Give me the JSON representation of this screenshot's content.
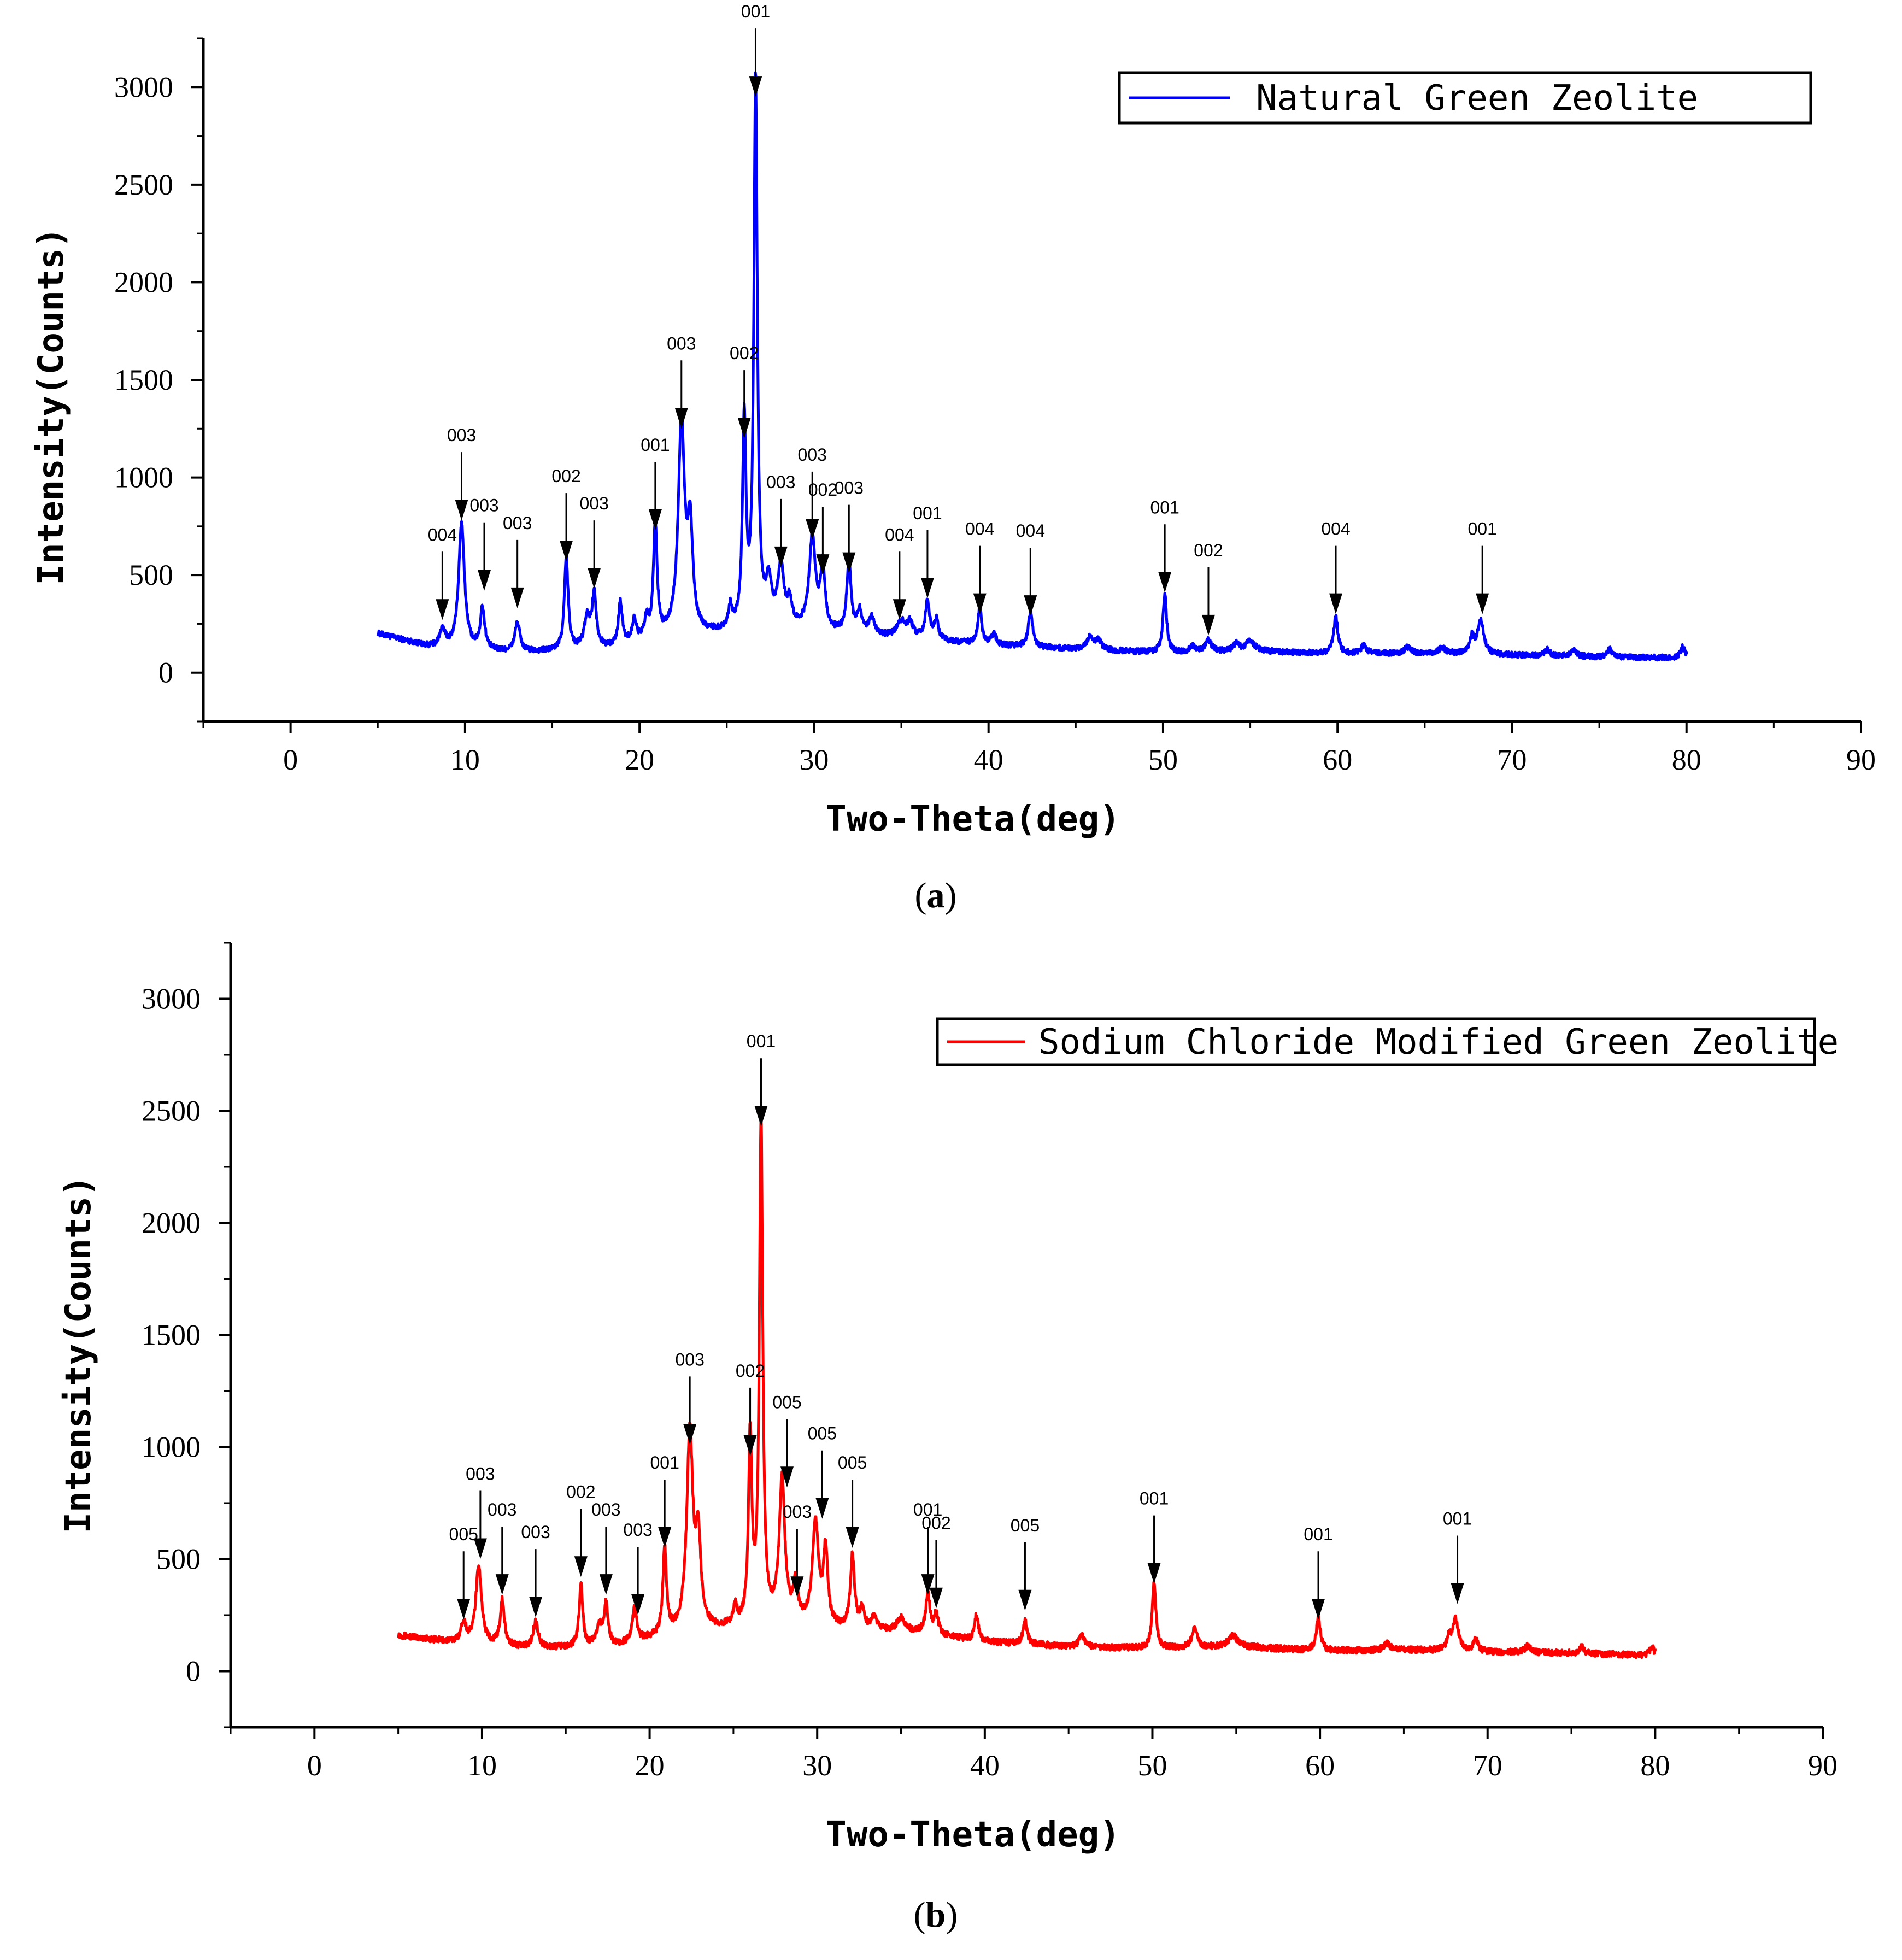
{
  "chart_data": [
    {
      "type": "line",
      "caption": "a",
      "xlabel": "Two-Theta(deg)",
      "ylabel": "Intensity(Counts)",
      "xlim": [
        -5,
        90
      ],
      "ylim": [
        -250,
        3250
      ],
      "xticks": [
        0,
        10,
        20,
        30,
        40,
        50,
        60,
        70,
        80,
        90
      ],
      "yticks": [
        0,
        500,
        1000,
        1500,
        2000,
        2500,
        3000
      ],
      "grid": false,
      "legend_position": "top-right",
      "series": [
        {
          "name": "Natural Green Zeolite",
          "color": "#0000ff",
          "x_range": [
            5,
            80
          ],
          "baseline": [
            [
              5,
              200
            ],
            [
              8,
              130
            ],
            [
              13,
              100
            ],
            [
              18,
              120
            ],
            [
              22,
              180
            ],
            [
              25,
              200
            ],
            [
              28,
              230
            ],
            [
              32,
              190
            ],
            [
              36,
              170
            ],
            [
              40,
              140
            ],
            [
              45,
              120
            ],
            [
              50,
              100
            ],
            [
              55,
              110
            ],
            [
              60,
              95
            ],
            [
              65,
              100
            ],
            [
              70,
              90
            ],
            [
              75,
              80
            ],
            [
              80,
              75
            ]
          ],
          "peaks": [
            [
              8.7,
              90,
              0.18
            ],
            [
              9.8,
              640,
              0.2
            ],
            [
              11.0,
              210,
              0.15
            ],
            [
              13.0,
              150,
              0.18
            ],
            [
              15.8,
              470,
              0.13
            ],
            [
              17.0,
              150,
              0.2
            ],
            [
              17.4,
              270,
              0.15
            ],
            [
              18.9,
              220,
              0.13
            ],
            [
              19.7,
              110,
              0.15
            ],
            [
              20.4,
              100,
              0.13
            ],
            [
              20.9,
              580,
              0.13
            ],
            [
              22.4,
              1080,
              0.22
            ],
            [
              22.9,
              500,
              0.18
            ],
            [
              25.2,
              110,
              0.13
            ],
            [
              26.0,
              1050,
              0.12
            ],
            [
              26.65,
              2800,
              0.12
            ],
            [
              27.4,
              200,
              0.2
            ],
            [
              28.1,
              300,
              0.2
            ],
            [
              28.6,
              120,
              0.15
            ],
            [
              29.9,
              470,
              0.22
            ],
            [
              30.5,
              330,
              0.15
            ],
            [
              32.0,
              370,
              0.15
            ],
            [
              32.6,
              120,
              0.15
            ],
            [
              33.3,
              90,
              0.2
            ],
            [
              35.0,
              80,
              0.3
            ],
            [
              35.5,
              70,
              0.2
            ],
            [
              36.5,
              190,
              0.15
            ],
            [
              37.0,
              100,
              0.15
            ],
            [
              39.5,
              190,
              0.13
            ],
            [
              40.3,
              60,
              0.15
            ],
            [
              42.4,
              180,
              0.15
            ],
            [
              45.8,
              60,
              0.2
            ],
            [
              46.3,
              50,
              0.2
            ],
            [
              50.1,
              300,
              0.13
            ],
            [
              51.7,
              30,
              0.2
            ],
            [
              52.6,
              60,
              0.2
            ],
            [
              54.2,
              40,
              0.2
            ],
            [
              55.0,
              50,
              0.3
            ],
            [
              59.9,
              190,
              0.15
            ],
            [
              61.5,
              40,
              0.2
            ],
            [
              64.0,
              30,
              0.2
            ],
            [
              66.0,
              30,
              0.2
            ],
            [
              67.7,
              80,
              0.15
            ],
            [
              68.2,
              180,
              0.2
            ],
            [
              72.0,
              30,
              0.2
            ],
            [
              73.5,
              30,
              0.2
            ],
            [
              75.6,
              40,
              0.15
            ],
            [
              79.8,
              60,
              0.15
            ]
          ],
          "end_point": [
            80,
            110
          ]
        }
      ],
      "annotations": [
        {
          "x": 8.7,
          "y": 270,
          "text": "004"
        },
        {
          "x": 9.8,
          "y": 780,
          "text": "003"
        },
        {
          "x": 11.1,
          "y": 420,
          "text": "003"
        },
        {
          "x": 13.0,
          "y": 330,
          "text": "003"
        },
        {
          "x": 15.8,
          "y": 570,
          "text": "002"
        },
        {
          "x": 17.4,
          "y": 430,
          "text": "003"
        },
        {
          "x": 20.9,
          "y": 730,
          "text": "001"
        },
        {
          "x": 22.4,
          "y": 1250,
          "text": "003"
        },
        {
          "x": 26.0,
          "y": 1200,
          "text": "002"
        },
        {
          "x": 26.65,
          "y": 2950,
          "text": "001"
        },
        {
          "x": 28.1,
          "y": 540,
          "text": "003"
        },
        {
          "x": 29.9,
          "y": 680,
          "text": "003"
        },
        {
          "x": 30.5,
          "y": 500,
          "text": "002"
        },
        {
          "x": 32.0,
          "y": 510,
          "text": "003"
        },
        {
          "x": 34.9,
          "y": 270,
          "text": "004"
        },
        {
          "x": 36.5,
          "y": 380,
          "text": "001"
        },
        {
          "x": 39.5,
          "y": 300,
          "text": "004"
        },
        {
          "x": 42.4,
          "y": 290,
          "text": "004"
        },
        {
          "x": 50.1,
          "y": 410,
          "text": "001"
        },
        {
          "x": 52.6,
          "y": 190,
          "text": "002"
        },
        {
          "x": 59.9,
          "y": 300,
          "text": "004"
        },
        {
          "x": 68.3,
          "y": 300,
          "text": "001"
        }
      ]
    },
    {
      "type": "line",
      "caption": "b",
      "xlabel": "Two-Theta(deg)",
      "ylabel": "Intensity(Counts)",
      "xlim": [
        -5,
        90
      ],
      "ylim": [
        -250,
        3250
      ],
      "xticks": [
        0,
        10,
        20,
        30,
        40,
        50,
        60,
        70,
        80,
        90
      ],
      "yticks": [
        0,
        500,
        1000,
        1500,
        2000,
        2500,
        3000
      ],
      "grid": false,
      "legend_position": "top-right",
      "series": [
        {
          "name": "Sodium Chloride Modified Green Zeolite",
          "color": "#ff0000",
          "x_range": [
            5,
            80
          ],
          "baseline": [
            [
              5,
              160
            ],
            [
              8,
              130
            ],
            [
              13,
              100
            ],
            [
              18,
              110
            ],
            [
              22,
              170
            ],
            [
              25,
              190
            ],
            [
              28,
              220
            ],
            [
              32,
              180
            ],
            [
              36,
              170
            ],
            [
              40,
              130
            ],
            [
              45,
              110
            ],
            [
              50,
              100
            ],
            [
              55,
              110
            ],
            [
              60,
              90
            ],
            [
              65,
              95
            ],
            [
              70,
              85
            ],
            [
              75,
              80
            ],
            [
              80,
              70
            ]
          ],
          "peaks": [
            [
              8.9,
              90,
              0.18
            ],
            [
              9.8,
              350,
              0.2
            ],
            [
              11.2,
              200,
              0.15
            ],
            [
              13.2,
              120,
              0.18
            ],
            [
              15.9,
              280,
              0.13
            ],
            [
              17.0,
              80,
              0.2
            ],
            [
              17.4,
              180,
              0.15
            ],
            [
              19.1,
              150,
              0.15
            ],
            [
              20.9,
              380,
              0.13
            ],
            [
              22.4,
              880,
              0.22
            ],
            [
              22.9,
              380,
              0.18
            ],
            [
              25.1,
              80,
              0.13
            ],
            [
              26.0,
              830,
              0.12
            ],
            [
              26.65,
              2250,
              0.12
            ],
            [
              27.9,
              620,
              0.2
            ],
            [
              28.7,
              150,
              0.15
            ],
            [
              29.9,
              450,
              0.22
            ],
            [
              30.5,
              330,
              0.15
            ],
            [
              32.1,
              330,
              0.15
            ],
            [
              32.7,
              90,
              0.15
            ],
            [
              33.4,
              60,
              0.2
            ],
            [
              35.0,
              60,
              0.3
            ],
            [
              36.6,
              180,
              0.15
            ],
            [
              37.1,
              90,
              0.15
            ],
            [
              39.5,
              120,
              0.13
            ],
            [
              42.4,
              100,
              0.15
            ],
            [
              45.8,
              50,
              0.2
            ],
            [
              50.1,
              300,
              0.13
            ],
            [
              52.5,
              80,
              0.2
            ],
            [
              54.8,
              50,
              0.3
            ],
            [
              59.9,
              150,
              0.15
            ],
            [
              64.0,
              30,
              0.2
            ],
            [
              67.7,
              60,
              0.15
            ],
            [
              68.1,
              140,
              0.2
            ],
            [
              69.3,
              60,
              0.15
            ],
            [
              72.4,
              30,
              0.2
            ],
            [
              75.6,
              30,
              0.15
            ],
            [
              79.8,
              40,
              0.15
            ]
          ],
          "end_point": [
            80,
            100
          ]
        }
      ],
      "annotations": [
        {
          "x": 8.9,
          "y": 230,
          "text": "005"
        },
        {
          "x": 9.9,
          "y": 500,
          "text": "003"
        },
        {
          "x": 11.2,
          "y": 340,
          "text": "003"
        },
        {
          "x": 13.2,
          "y": 240,
          "text": "003"
        },
        {
          "x": 15.9,
          "y": 420,
          "text": "002"
        },
        {
          "x": 17.4,
          "y": 340,
          "text": "003"
        },
        {
          "x": 19.3,
          "y": 250,
          "text": "003"
        },
        {
          "x": 20.9,
          "y": 550,
          "text": "001"
        },
        {
          "x": 22.4,
          "y": 1010,
          "text": "003"
        },
        {
          "x": 26.0,
          "y": 960,
          "text": "002"
        },
        {
          "x": 26.65,
          "y": 2430,
          "text": "001"
        },
        {
          "x": 28.2,
          "y": 820,
          "text": "005"
        },
        {
          "x": 28.8,
          "y": 330,
          "text": "003"
        },
        {
          "x": 30.3,
          "y": 680,
          "text": "005"
        },
        {
          "x": 32.1,
          "y": 550,
          "text": "005"
        },
        {
          "x": 36.6,
          "y": 340,
          "text": "001"
        },
        {
          "x": 37.1,
          "y": 280,
          "text": "002"
        },
        {
          "x": 42.4,
          "y": 270,
          "text": "005"
        },
        {
          "x": 50.1,
          "y": 390,
          "text": "001"
        },
        {
          "x": 59.9,
          "y": 230,
          "text": "001"
        },
        {
          "x": 68.2,
          "y": 300,
          "text": "001"
        }
      ]
    }
  ]
}
